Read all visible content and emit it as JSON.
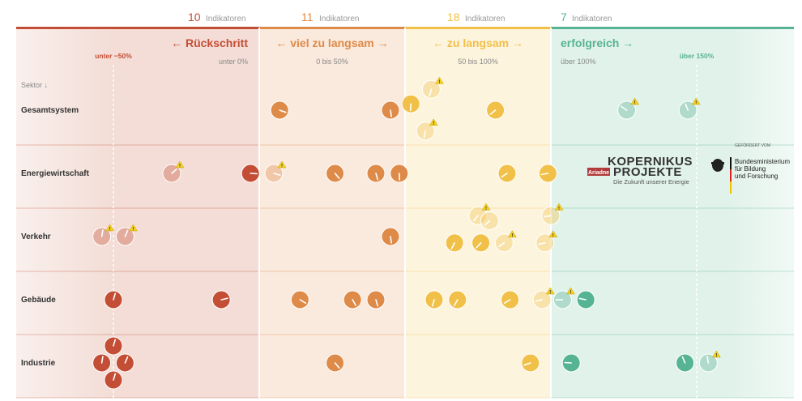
{
  "chart_data": {
    "type": "scatter",
    "subtitle_label": "Sektor ↓",
    "categories": [
      {
        "id": "rueck",
        "count": "10",
        "count_label": "Indikatoren",
        "title": "← Rückschritt",
        "range_label": "unter 0%",
        "color": "#c44d35",
        "bg": "#f3ddd6"
      },
      {
        "id": "viel",
        "count": "11",
        "count_label": "Indikatoren",
        "title": "← viel zu langsam →",
        "range_label": "0 bis 50%",
        "color": "#de8a48",
        "bg": "#fae9dd"
      },
      {
        "id": "zu",
        "count": "18",
        "count_label": "Indikatoren",
        "title": "← zu langsam →",
        "range_label": "50 bis 100%",
        "color": "#f1c048",
        "bg": "#fdf4de"
      },
      {
        "id": "erfolg",
        "count": "7",
        "count_label": "Indikatoren",
        "title": "erfolgreich →",
        "range_label": "über 100%",
        "color": "#56b394",
        "bg": "#e1f2ea"
      }
    ],
    "reference_lines": [
      {
        "label": "unter −50%",
        "value": -50,
        "color": "#c44d35"
      },
      {
        "label": "über 150%",
        "value": 150,
        "color": "#56b394"
      }
    ],
    "sectors": [
      "Gesamtsystem",
      "Energiewirtschaft",
      "Verkehr",
      "Gebäude",
      "Industrie"
    ],
    "points": [
      {
        "sector": 0,
        "x": 7,
        "dy": 0,
        "cat": 1,
        "status": "solid",
        "warn": false
      },
      {
        "sector": 0,
        "x": 45,
        "dy": 0,
        "cat": 1,
        "status": "solid",
        "warn": false
      },
      {
        "sector": 0,
        "x": 52,
        "dy": -0.1,
        "cat": 2,
        "status": "solid",
        "warn": false
      },
      {
        "sector": 0,
        "x": 59,
        "dy": -0.33,
        "cat": 2,
        "status": "faded",
        "warn": true
      },
      {
        "sector": 0,
        "x": 57,
        "dy": 0.33,
        "cat": 2,
        "status": "faded",
        "warn": true
      },
      {
        "sector": 0,
        "x": 81,
        "dy": 0,
        "cat": 2,
        "status": "solid",
        "warn": false
      },
      {
        "sector": 0,
        "x": 126,
        "dy": 0,
        "cat": 3,
        "status": "faded",
        "warn": true
      },
      {
        "sector": 0,
        "x": 147,
        "dy": 0,
        "cat": 3,
        "status": "faded",
        "warn": true
      },
      {
        "sector": 1,
        "x": -30,
        "dy": 0,
        "cat": 0,
        "status": "faded",
        "warn": true
      },
      {
        "sector": 1,
        "x": -3,
        "dy": 0,
        "cat": 0,
        "status": "solid",
        "warn": false
      },
      {
        "sector": 1,
        "x": 5,
        "dy": 0,
        "cat": 1,
        "status": "faded",
        "warn": true
      },
      {
        "sector": 1,
        "x": 26,
        "dy": 0,
        "cat": 1,
        "status": "solid",
        "warn": false
      },
      {
        "sector": 1,
        "x": 40,
        "dy": 0,
        "cat": 1,
        "status": "solid",
        "warn": false
      },
      {
        "sector": 1,
        "x": 48,
        "dy": 0,
        "cat": 1,
        "status": "solid",
        "warn": false
      },
      {
        "sector": 1,
        "x": 85,
        "dy": 0,
        "cat": 2,
        "status": "solid",
        "warn": false
      },
      {
        "sector": 1,
        "x": 99,
        "dy": 0,
        "cat": 2,
        "status": "solid",
        "warn": false
      },
      {
        "sector": 2,
        "x": -54,
        "dy": 0,
        "cat": 0,
        "status": "faded",
        "warn": true
      },
      {
        "sector": 2,
        "x": -46,
        "dy": 0,
        "cat": 0,
        "status": "faded",
        "warn": true
      },
      {
        "sector": 2,
        "x": 45,
        "dy": 0,
        "cat": 1,
        "status": "solid",
        "warn": false
      },
      {
        "sector": 2,
        "x": 75,
        "dy": -0.33,
        "cat": 2,
        "status": "faded",
        "warn": true
      },
      {
        "sector": 2,
        "x": 79,
        "dy": -0.25,
        "cat": 2,
        "status": "faded",
        "warn": false
      },
      {
        "sector": 2,
        "x": 67,
        "dy": 0.1,
        "cat": 2,
        "status": "solid",
        "warn": false
      },
      {
        "sector": 2,
        "x": 76,
        "dy": 0.1,
        "cat": 2,
        "status": "solid",
        "warn": false
      },
      {
        "sector": 2,
        "x": 84,
        "dy": 0.1,
        "cat": 2,
        "status": "faded",
        "warn": true
      },
      {
        "sector": 2,
        "x": 98,
        "dy": 0.1,
        "cat": 2,
        "status": "faded",
        "warn": true
      },
      {
        "sector": 2,
        "x": 100,
        "dy": -0.33,
        "cat": 2,
        "status": "faded",
        "warn": true
      },
      {
        "sector": 3,
        "x": -50,
        "dy": 0,
        "cat": 0,
        "status": "solid",
        "warn": false
      },
      {
        "sector": 3,
        "x": -13,
        "dy": 0,
        "cat": 0,
        "status": "solid",
        "warn": false
      },
      {
        "sector": 3,
        "x": 14,
        "dy": 0,
        "cat": 1,
        "status": "solid",
        "warn": false
      },
      {
        "sector": 3,
        "x": 32,
        "dy": 0,
        "cat": 1,
        "status": "solid",
        "warn": false
      },
      {
        "sector": 3,
        "x": 40,
        "dy": 0,
        "cat": 1,
        "status": "solid",
        "warn": false
      },
      {
        "sector": 3,
        "x": 60,
        "dy": 0,
        "cat": 2,
        "status": "solid",
        "warn": false
      },
      {
        "sector": 3,
        "x": 68,
        "dy": 0,
        "cat": 2,
        "status": "solid",
        "warn": false
      },
      {
        "sector": 3,
        "x": 86,
        "dy": 0,
        "cat": 2,
        "status": "solid",
        "warn": false
      },
      {
        "sector": 3,
        "x": 97,
        "dy": 0,
        "cat": 2,
        "status": "faded",
        "warn": true
      },
      {
        "sector": 3,
        "x": 104,
        "dy": 0,
        "cat": 3,
        "status": "faded",
        "warn": true
      },
      {
        "sector": 3,
        "x": 112,
        "dy": 0,
        "cat": 3,
        "status": "solid",
        "warn": false
      },
      {
        "sector": 4,
        "x": -50,
        "dy": -0.27,
        "cat": 0,
        "status": "solid",
        "warn": false
      },
      {
        "sector": 4,
        "x": -54,
        "dy": 0,
        "cat": 0,
        "status": "solid",
        "warn": false
      },
      {
        "sector": 4,
        "x": -46,
        "dy": 0,
        "cat": 0,
        "status": "solid",
        "warn": false
      },
      {
        "sector": 4,
        "x": -50,
        "dy": 0.27,
        "cat": 0,
        "status": "solid",
        "warn": false
      },
      {
        "sector": 4,
        "x": 26,
        "dy": 0,
        "cat": 1,
        "status": "solid",
        "warn": false
      },
      {
        "sector": 4,
        "x": 93,
        "dy": 0,
        "cat": 2,
        "status": "solid",
        "warn": false
      },
      {
        "sector": 4,
        "x": 107,
        "dy": 0,
        "cat": 3,
        "status": "solid",
        "warn": false
      },
      {
        "sector": 4,
        "x": 146,
        "dy": 0,
        "cat": 3,
        "status": "solid",
        "warn": false
      },
      {
        "sector": 4,
        "x": 154,
        "dy": 0,
        "cat": 3,
        "status": "faded",
        "warn": true
      }
    ]
  },
  "logos": {
    "kopernikus_line1": "KOPERNIKUS",
    "kopernikus_line2": "PROJEKTE",
    "kopernikus_tag": "Ariadne",
    "kopernikus_sub": "Die Zukunft unserer Energie",
    "ministry_top": "GEFÖRDERT VOM",
    "ministry_line1": "Bundesministerium",
    "ministry_line2": "für Bildung",
    "ministry_line3": "und Forschung"
  }
}
